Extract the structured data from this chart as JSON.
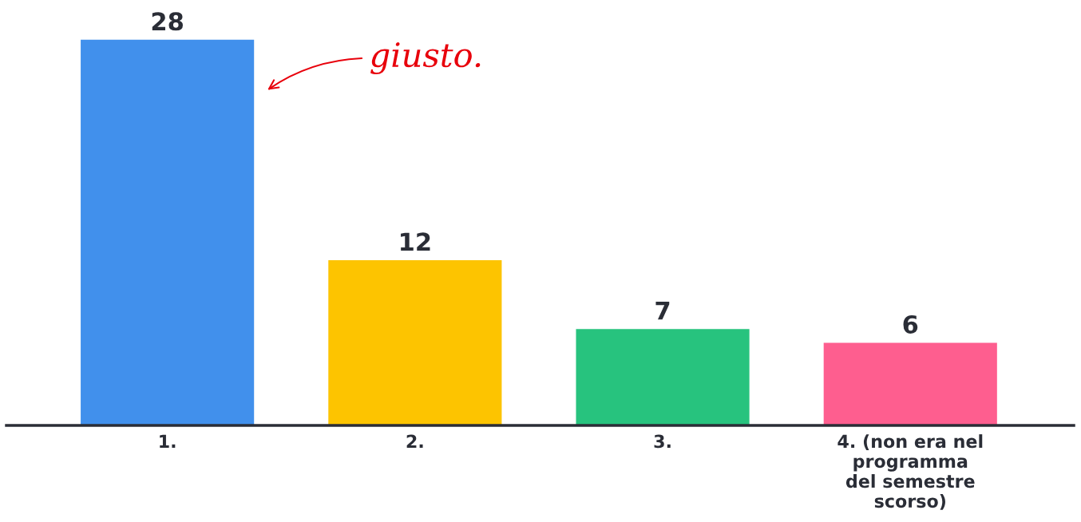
{
  "chart_data": {
    "type": "bar",
    "categories": [
      "1.",
      "2.",
      "3.",
      "4. (non era nel\nprogramma\ndel semestre\nscorso)"
    ],
    "values": [
      28,
      12,
      7,
      6
    ],
    "colors": [
      "#4190ec",
      "#fdc400",
      "#27c37e",
      "#fe5e8f"
    ],
    "data_labels": true,
    "annotations": [
      "giusto."
    ]
  }
}
